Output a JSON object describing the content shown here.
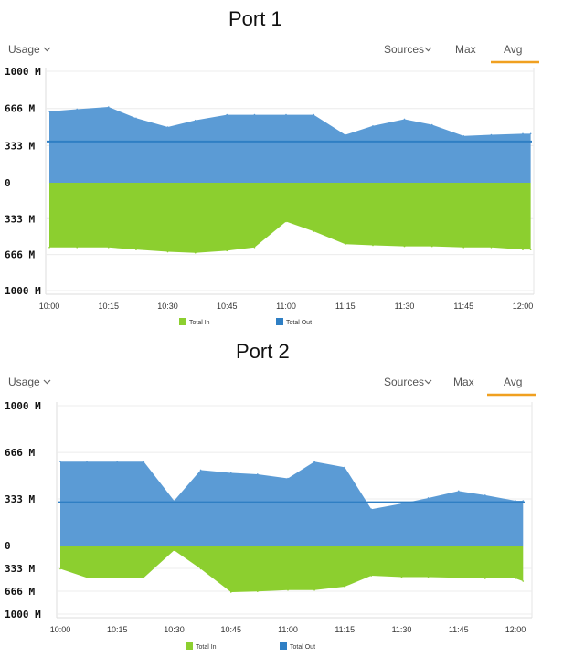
{
  "colors": {
    "in": "#8ccf2f",
    "out": "#5b9bd5",
    "out_line": "#2f7fc4",
    "accent": "#f0a020"
  },
  "icons": {
    "dropdown": "chevron-down-icon"
  },
  "chart_data": [
    {
      "type": "area",
      "title": "Port 1",
      "header": {
        "usage": "Usage",
        "sources": "Sources",
        "max": "Max",
        "avg": "Avg",
        "selected": "Avg"
      },
      "y_ticks": [
        "1000 M",
        "666 M",
        "333 M",
        "0",
        "333 M",
        "666 M",
        "1000 M"
      ],
      "ylim": [
        -1000,
        1000
      ],
      "x_ticks": [
        "10:00",
        "10:15",
        "10:30",
        "10:45",
        "11:00",
        "11:15",
        "11:30",
        "11:45",
        "12:00"
      ],
      "x": [
        "10:00",
        "10:07",
        "10:15",
        "10:22",
        "10:30",
        "10:37",
        "10:45",
        "10:52",
        "11:00",
        "11:07",
        "11:15",
        "11:22",
        "11:30",
        "11:37",
        "11:45",
        "11:52",
        "12:00",
        "12:02"
      ],
      "series": [
        {
          "name": "Total In",
          "values": [
            -600,
            -600,
            -600,
            -620,
            -640,
            -650,
            -630,
            -600,
            -360,
            -450,
            -570,
            -580,
            -590,
            -590,
            -600,
            -600,
            -620,
            -620
          ]
        },
        {
          "name": "Total Out",
          "values": [
            640,
            660,
            680,
            580,
            500,
            560,
            610,
            610,
            610,
            610,
            430,
            510,
            570,
            520,
            420,
            430,
            440,
            440
          ]
        }
      ],
      "reference_line": 370,
      "legend": "bottom"
    },
    {
      "type": "area",
      "title": "Port 2",
      "header": {
        "usage": "Usage",
        "sources": "Sources",
        "max": "Max",
        "avg": "Avg",
        "selected": "Avg"
      },
      "y_ticks": [
        "1000 M",
        "666 M",
        "333 M",
        "0",
        "333 M",
        "666 M",
        "1000 M"
      ],
      "ylim": [
        -1000,
        1000
      ],
      "x_ticks": [
        "10:00",
        "10:15",
        "10:30",
        "10:45",
        "11:00",
        "11:15",
        "11:30",
        "11:45",
        "12:00"
      ],
      "x": [
        "10:00",
        "10:07",
        "10:15",
        "10:22",
        "10:30",
        "10:37",
        "10:45",
        "10:52",
        "11:00",
        "11:07",
        "11:15",
        "11:22",
        "11:30",
        "11:37",
        "11:45",
        "11:52",
        "12:00",
        "12:02"
      ],
      "series": [
        {
          "name": "Total In",
          "values": [
            -340,
            -470,
            -470,
            -470,
            -70,
            -340,
            -680,
            -670,
            -650,
            -650,
            -600,
            -440,
            -460,
            -460,
            -470,
            -480,
            -480,
            -520
          ]
        },
        {
          "name": "Total Out",
          "values": [
            600,
            600,
            600,
            600,
            320,
            540,
            520,
            510,
            480,
            600,
            560,
            260,
            300,
            340,
            390,
            360,
            320,
            320
          ]
        }
      ],
      "reference_line": 310,
      "legend": "bottom"
    }
  ]
}
